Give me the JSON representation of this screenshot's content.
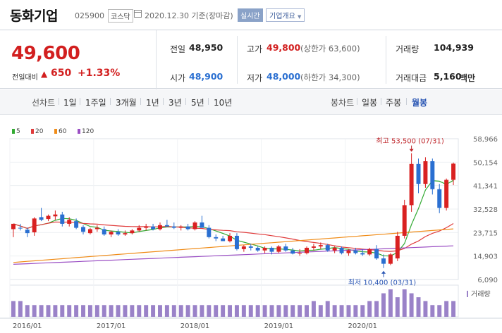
{
  "header": {
    "company_name": "동화기업",
    "code": "025900",
    "market": "코스닥",
    "date": "2020.12.30 기준(장마감)",
    "realtime_label": "실시간",
    "company_info_label": "기업개요"
  },
  "summary": {
    "price": "49,600",
    "change_label": "전일대비",
    "change_value": "650",
    "change_pct": "+1.33%",
    "prev_close_label": "전일",
    "prev_close": "48,950",
    "high_label": "고가",
    "high": "49,800",
    "upper_limit": "(상한가 63,600)",
    "volume_label": "거래량",
    "volume": "104,939",
    "open_label": "시가",
    "open": "48,900",
    "low_label": "저가",
    "low": "48,000",
    "lower_limit": "(하한가 34,300)",
    "amount_label": "거래대금",
    "amount": "5,160",
    "amount_unit": "백만"
  },
  "tabs": {
    "line_chart_label": "선차트",
    "periods": [
      "1일",
      "1주일",
      "3개월",
      "1년",
      "3년",
      "5년",
      "10년"
    ],
    "candle_chart_label": "봉차트",
    "candle_periods": [
      "일봉",
      "주봉",
      "월봉"
    ],
    "active_candle": "월봉"
  },
  "colors": {
    "up": "#d92121",
    "down": "#2a6fd1",
    "ma5": "#33aa33",
    "ma20": "#e03c3c",
    "ma60": "#f08c18",
    "ma120": "#9b4fc4"
  },
  "chart_data": {
    "type": "candlestick",
    "legend": [
      {
        "name": "5",
        "color": "#33aa33"
      },
      {
        "name": "20",
        "color": "#e03c3c"
      },
      {
        "name": "60",
        "color": "#f08c18"
      },
      {
        "name": "120",
        "color": "#9b4fc4"
      }
    ],
    "y_ticks": [
      "58,966",
      "50,154",
      "41,341",
      "32,528",
      "23,715",
      "14,903",
      "6,090"
    ],
    "ylim": [
      6090,
      58966
    ],
    "x_ticks": [
      "2016/01",
      "2017/01",
      "2018/01",
      "2019/01",
      "2020/01"
    ],
    "volume_label": "거래량",
    "annotations": [
      {
        "text": "최고 53,500 (07/31)",
        "index": 57,
        "value": 53500,
        "position": "above"
      },
      {
        "text": "최저 10,400 (03/31)",
        "index": 53,
        "value": 10400,
        "position": "below"
      }
    ],
    "ohlc": [
      [
        25000,
        26500,
        22000,
        27000
      ],
      [
        25500,
        27000,
        24500,
        25300
      ],
      [
        24800,
        25600,
        22000,
        23500
      ],
      [
        23800,
        29500,
        22500,
        29000
      ],
      [
        29500,
        33000,
        28000,
        28500
      ],
      [
        28800,
        30500,
        28000,
        30000
      ],
      [
        29800,
        32000,
        28500,
        30500
      ],
      [
        30500,
        31500,
        26000,
        27000
      ],
      [
        27000,
        29500,
        26000,
        28500
      ],
      [
        28000,
        29000,
        25000,
        25500
      ],
      [
        25800,
        26500,
        23000,
        24000
      ],
      [
        23500,
        25500,
        23000,
        25000
      ],
      [
        25000,
        26500,
        24000,
        25500
      ],
      [
        25000,
        26000,
        22500,
        23000
      ],
      [
        23000,
        24500,
        22000,
        24000
      ],
      [
        24000,
        25000,
        22500,
        23000
      ],
      [
        23000,
        24500,
        22500,
        23500
      ],
      [
        23500,
        25000,
        23000,
        24500
      ],
      [
        24500,
        26500,
        24000,
        25500
      ],
      [
        25500,
        27000,
        24500,
        26000
      ],
      [
        26000,
        27000,
        24500,
        25000
      ],
      [
        25000,
        27500,
        24500,
        26500
      ],
      [
        26500,
        28500,
        26000,
        26000
      ],
      [
        26000,
        27500,
        25000,
        25500
      ],
      [
        25500,
        26500,
        24500,
        26000
      ],
      [
        26000,
        27000,
        24500,
        25000
      ],
      [
        25000,
        28000,
        24500,
        27500
      ],
      [
        27500,
        30000,
        26000,
        25500
      ],
      [
        25500,
        26500,
        21500,
        22000
      ],
      [
        22000,
        23000,
        20500,
        21500
      ],
      [
        21500,
        22500,
        20500,
        20500
      ],
      [
        20500,
        23500,
        20000,
        22500
      ],
      [
        22500,
        23500,
        17000,
        17500
      ],
      [
        17500,
        19000,
        16500,
        18500
      ],
      [
        18500,
        19500,
        17000,
        18000
      ],
      [
        18000,
        18500,
        16500,
        17000
      ],
      [
        17000,
        18500,
        16000,
        18000
      ],
      [
        18000,
        18500,
        15500,
        16500
      ],
      [
        16500,
        19000,
        16000,
        18500
      ],
      [
        18500,
        19500,
        16500,
        17000
      ],
      [
        17000,
        18000,
        15500,
        15800
      ],
      [
        15800,
        17500,
        15000,
        16000
      ],
      [
        16000,
        18500,
        15500,
        18000
      ],
      [
        18000,
        19500,
        17000,
        18500
      ],
      [
        18500,
        20000,
        17500,
        19000
      ],
      [
        19000,
        19500,
        16500,
        17000
      ],
      [
        17000,
        18500,
        16000,
        18000
      ],
      [
        18000,
        18500,
        15500,
        16000
      ],
      [
        16000,
        17500,
        15000,
        17000
      ],
      [
        17000,
        18000,
        15500,
        16000
      ],
      [
        16000,
        17500,
        15000,
        15500
      ],
      [
        15500,
        18000,
        15000,
        17500
      ],
      [
        17500,
        19000,
        13500,
        14000
      ],
      [
        14000,
        15500,
        10400,
        12000
      ],
      [
        12000,
        16000,
        11500,
        15500
      ],
      [
        14000,
        24000,
        13000,
        22500
      ],
      [
        22500,
        36000,
        21500,
        34000
      ],
      [
        34000,
        53500,
        31500,
        49500
      ],
      [
        49500,
        51500,
        38500,
        42000
      ],
      [
        42000,
        52000,
        40500,
        50500
      ],
      [
        50500,
        51500,
        38000,
        40000
      ],
      [
        40000,
        42000,
        31000,
        33000
      ],
      [
        33000,
        44000,
        32000,
        43500
      ],
      [
        43500,
        50000,
        41500,
        49600
      ]
    ],
    "volume": [
      4,
      4,
      3,
      3,
      3,
      3,
      3,
      3,
      3,
      3,
      3,
      3,
      3,
      3,
      3,
      3,
      3,
      3,
      3,
      3,
      3,
      3,
      3,
      3,
      3,
      3,
      3,
      3,
      3,
      3,
      3,
      3,
      3,
      3,
      3,
      3,
      3,
      3,
      3,
      3,
      3,
      3,
      3,
      4,
      3,
      4,
      3,
      3,
      3,
      3,
      3,
      4,
      4,
      6,
      7,
      5,
      7,
      6,
      5,
      4,
      3,
      3,
      4,
      4
    ]
  }
}
